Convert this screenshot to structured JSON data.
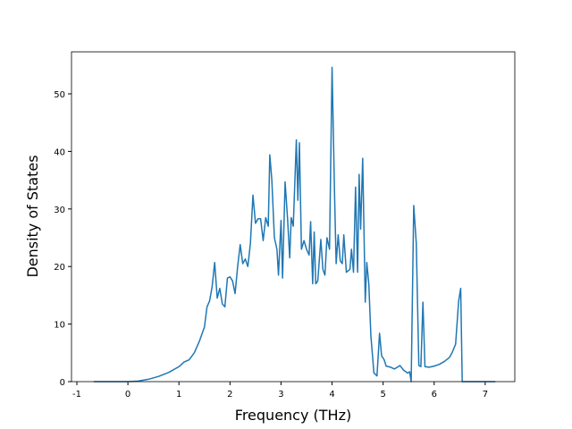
{
  "chart_data": {
    "type": "line",
    "x_label": "Frequency (THz)",
    "y_label": "Density of States",
    "series": [
      {
        "color": "#1f77b4",
        "x": [
          -0.67,
          0,
          0.2,
          0.4,
          0.6,
          0.8,
          1.0,
          1.1,
          1.2,
          1.3,
          1.4,
          1.5,
          1.55,
          1.6,
          1.65,
          1.7,
          1.75,
          1.8,
          1.85,
          1.9,
          1.95,
          2.0,
          2.05,
          2.1,
          2.15,
          2.2,
          2.25,
          2.3,
          2.35,
          2.4,
          2.45,
          2.5,
          2.55,
          2.6,
          2.65,
          2.7,
          2.75,
          2.78,
          2.82,
          2.87,
          2.92,
          2.95,
          3.0,
          3.03,
          3.08,
          3.13,
          3.17,
          3.2,
          3.24,
          3.3,
          3.33,
          3.36,
          3.4,
          3.45,
          3.5,
          3.55,
          3.58,
          3.62,
          3.65,
          3.68,
          3.72,
          3.78,
          3.82,
          3.86,
          3.9,
          3.95,
          4.0,
          4.05,
          4.08,
          4.12,
          4.16,
          4.2,
          4.23,
          4.28,
          4.35,
          4.38,
          4.42,
          4.46,
          4.5,
          4.53,
          4.56,
          4.6,
          4.65,
          4.68,
          4.72,
          4.76,
          4.82,
          4.88,
          4.93,
          4.97,
          5.02,
          5.06,
          5.15,
          5.22,
          5.28,
          5.33,
          5.4,
          5.48,
          5.52,
          5.55,
          5.6,
          5.65,
          5.7,
          5.74,
          5.78,
          5.82,
          5.9,
          6.0,
          6.1,
          6.2,
          6.3,
          6.35,
          6.42,
          6.48,
          6.52,
          6.55,
          7.2
        ],
        "values": [
          0,
          0,
          0.1,
          0.4,
          0.9,
          1.6,
          2.6,
          3.4,
          3.8,
          5,
          7,
          9.5,
          13,
          14,
          16.5,
          20.7,
          14.5,
          16.2,
          13.5,
          13,
          18,
          18.2,
          17.5,
          15.3,
          20,
          23.8,
          20.5,
          21.3,
          20,
          24,
          32.4,
          27.5,
          28.3,
          28.3,
          24.5,
          28.5,
          27,
          39.4,
          35,
          25,
          23,
          18.5,
          28,
          18,
          34.7,
          28,
          21.5,
          28.5,
          27,
          42,
          31.5,
          41.5,
          23,
          24.5,
          23,
          22,
          27.8,
          17,
          26,
          17,
          17.5,
          24.7,
          19.5,
          18.5,
          25,
          23,
          54.6,
          32,
          20.5,
          25.5,
          21,
          20.5,
          25.5,
          19,
          19.5,
          23,
          19,
          33.8,
          19,
          36,
          26.5,
          38.8,
          13.8,
          20.7,
          17,
          8,
          1.5,
          1,
          8.4,
          4.5,
          3.8,
          2.7,
          2.5,
          2.2,
          2.5,
          2.8,
          2,
          1.5,
          1.7,
          0,
          30.6,
          24,
          2.8,
          2.6,
          13.8,
          2.6,
          2.5,
          2.7,
          3,
          3.5,
          4.2,
          5,
          6.5,
          14,
          16.2,
          0,
          0
        ]
      }
    ],
    "xlim": [
      -1.105,
      7.58
    ],
    "ylim": [
      0,
      57.3
    ],
    "xticks": [
      -1,
      0,
      1,
      2,
      3,
      4,
      5,
      6,
      7
    ],
    "yticks": [
      0,
      10,
      20,
      30,
      40,
      50
    ]
  }
}
